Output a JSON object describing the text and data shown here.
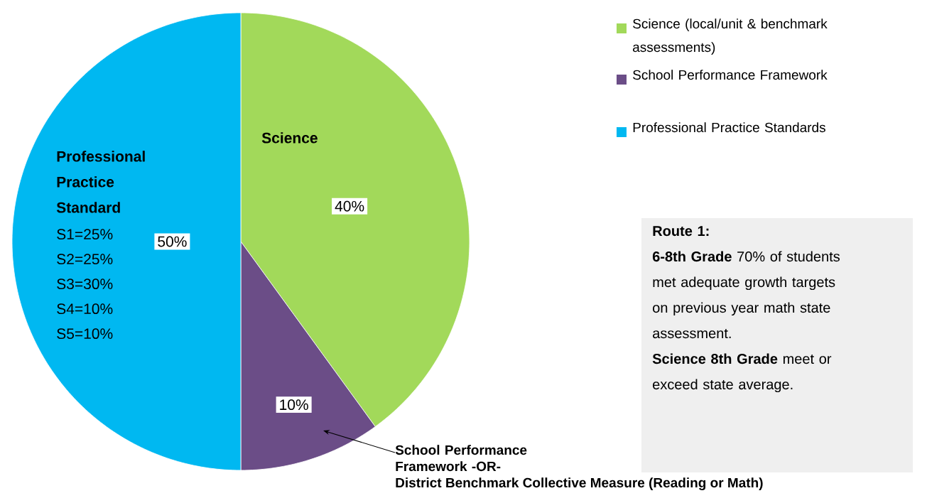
{
  "chart_data": {
    "type": "pie",
    "categories": [
      "Science (local/unit & benchmark assessments)",
      "School Performance Framework",
      "Professional Practice Standards"
    ],
    "values": [
      40,
      10,
      50
    ],
    "value_labels": [
      "40%",
      "10%",
      "50%"
    ],
    "colors": [
      "#a2d95a",
      "#6b4d87",
      "#00b8f1"
    ],
    "legend": "top right",
    "annotations": [
      "Science",
      "Professional Practice Standard",
      "S1=25%",
      "S2=25%",
      "S3=30%",
      "S4=10%",
      "S5=10%",
      "School Performance Framework -OR-",
      "District Benchmark Collective Measure (Reading or Math)",
      "Route 1:",
      "**6-8th Grade** 70% of students met adequate growth targets on previous year math state assessment.",
      "**Science 8th Grade** meet or exceed state average."
    ]
  }
}
